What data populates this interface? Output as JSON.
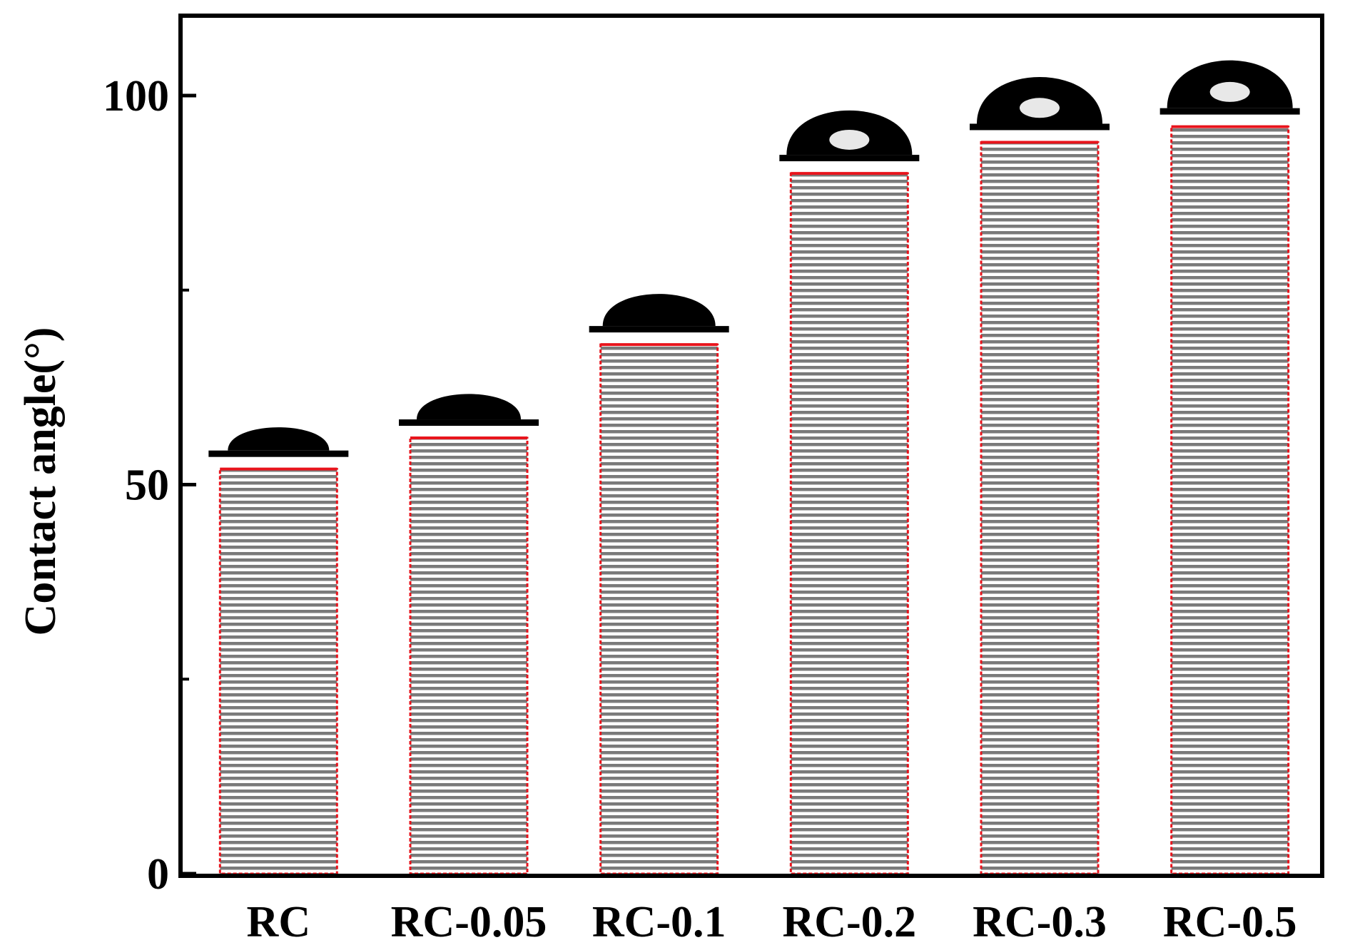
{
  "chart_data": {
    "type": "bar",
    "categories": [
      "RC",
      "RC-0.05",
      "RC-0.1",
      "RC-0.2",
      "RC-0.3",
      "RC-0.5"
    ],
    "values": [
      52,
      56,
      68,
      90,
      94,
      96
    ],
    "title": "",
    "xlabel": "",
    "ylabel": "Contact angle(°)",
    "ylim": [
      0,
      100
    ],
    "yticks": [
      0,
      50,
      100
    ],
    "y_max_shown": 110,
    "grid": false,
    "bar_style": "gray horizontal stripes with red dotted outline",
    "inset_images": "water droplet photo above each bar"
  },
  "colors": {
    "bar_stripe": "#7a7a7a",
    "bar_outline": "#e8141c",
    "axes": "#000000",
    "droplet": "#000000",
    "background": "#ffffff"
  }
}
